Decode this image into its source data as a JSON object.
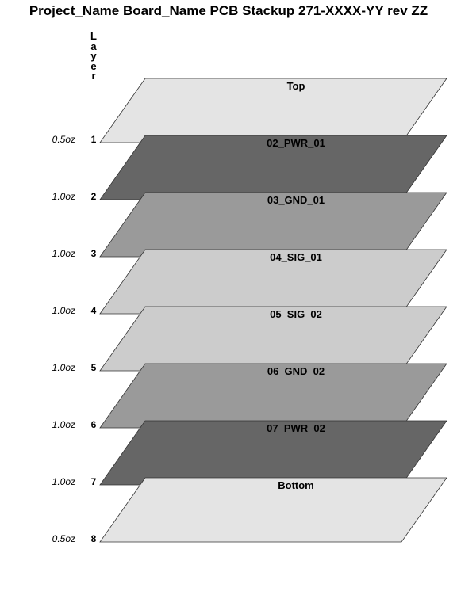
{
  "title": "Project_Name Board_Name PCB Stackup 271-XXXX-YY rev ZZ",
  "layer_heading": [
    "L",
    "a",
    "y",
    "e",
    "r"
  ],
  "layers": [
    {
      "number": "1",
      "name": "Top",
      "weight": "0.5oz",
      "color": "#e4e4e4"
    },
    {
      "number": "2",
      "name": "02_PWR_01",
      "weight": "1.0oz",
      "color": "#666666"
    },
    {
      "number": "3",
      "name": "03_GND_01",
      "weight": "1.0oz",
      "color": "#9a9a9a"
    },
    {
      "number": "4",
      "name": "04_SIG_01",
      "weight": "1.0oz",
      "color": "#cccccc"
    },
    {
      "number": "5",
      "name": "05_SIG_02",
      "weight": "1.0oz",
      "color": "#cccccc"
    },
    {
      "number": "6",
      "name": "06_GND_02",
      "weight": "1.0oz",
      "color": "#9a9a9a"
    },
    {
      "number": "7",
      "name": "07_PWR_02",
      "weight": "1.0oz",
      "color": "#666666"
    },
    {
      "number": "8",
      "name": "Bottom",
      "weight": "0.5oz",
      "color": "#e4e4e4"
    }
  ]
}
